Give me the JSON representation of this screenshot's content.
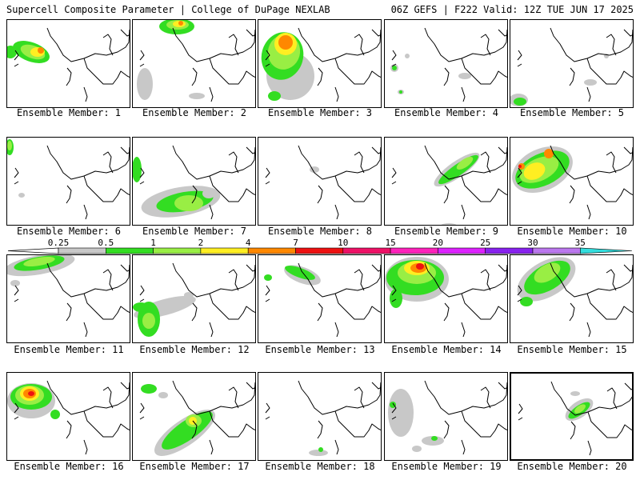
{
  "header": {
    "left": "Supercell Composite Parameter | College of DuPage NEXLAB",
    "right": "06Z GEFS | F222 Valid: 12Z TUE JUN 17 2025"
  },
  "colorbar": {
    "ticks": [
      "0.25",
      "0.5",
      "1",
      "2",
      "4",
      "7",
      "10",
      "15",
      "20",
      "25",
      "30",
      "35"
    ],
    "colors": [
      "#c8c8c8",
      "#33dd22",
      "#99ee44",
      "#ffee22",
      "#ff8800",
      "#ee1111",
      "#ee1166",
      "#ff22bb",
      "#dd22ff",
      "#8822ee",
      "#bb77ee",
      "#33dddd"
    ]
  },
  "panels": [
    {
      "label": "Ensemble Member: 1"
    },
    {
      "label": "Ensemble Member: 2"
    },
    {
      "label": "Ensemble Member: 3"
    },
    {
      "label": "Ensemble Member: 4"
    },
    {
      "label": "Ensemble Member: 5"
    },
    {
      "label": "Ensemble Member: 6"
    },
    {
      "label": "Ensemble Member: 7"
    },
    {
      "label": "Ensemble Member: 8"
    },
    {
      "label": "Ensemble Member: 9"
    },
    {
      "label": "Ensemble Member: 10"
    },
    {
      "label": "Ensemble Member: 11"
    },
    {
      "label": "Ensemble Member: 12"
    },
    {
      "label": "Ensemble Member: 13"
    },
    {
      "label": "Ensemble Member: 14"
    },
    {
      "label": "Ensemble Member: 15"
    },
    {
      "label": "Ensemble Member: 16"
    },
    {
      "label": "Ensemble Member: 17"
    },
    {
      "label": "Ensemble Member: 18"
    },
    {
      "label": "Ensemble Member: 19"
    },
    {
      "label": "Ensemble Member: 20"
    }
  ]
}
